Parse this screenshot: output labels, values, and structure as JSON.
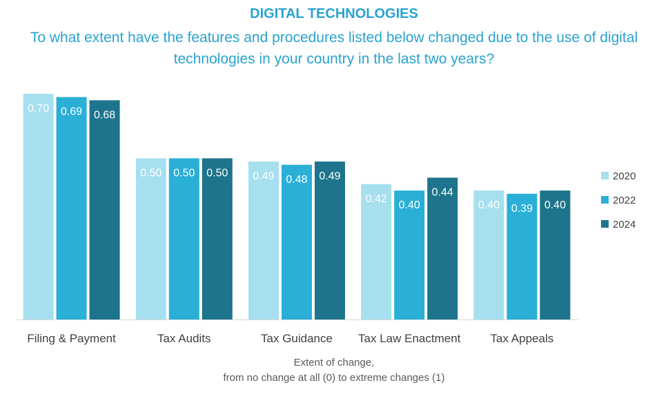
{
  "title": "DIGITAL TECHNOLOGIES",
  "subtitle": "To what extent have the features and procedures listed below changed due to the use of digital technologies in your country in the last two years?",
  "colors": {
    "title": "#29a3cf",
    "2020": "#a6dfee",
    "2022": "#2aafd7",
    "2024": "#1d748c"
  },
  "chart_data": {
    "type": "bar",
    "categories": [
      "Filing & Payment",
      "Tax Audits",
      "Tax Guidance",
      "Tax Law Enactment",
      "Tax Appeals"
    ],
    "series": [
      {
        "name": "2020",
        "values": [
          0.7,
          0.5,
          0.49,
          0.42,
          0.4
        ],
        "labels": [
          "0.70",
          "0.50",
          "0.49",
          "0.42",
          "0.40"
        ]
      },
      {
        "name": "2022",
        "values": [
          0.69,
          0.5,
          0.48,
          0.4,
          0.39
        ],
        "labels": [
          "0.69",
          "0.50",
          "0.48",
          "0.40",
          "0.39"
        ]
      },
      {
        "name": "2024",
        "values": [
          0.68,
          0.5,
          0.49,
          0.44,
          0.4
        ],
        "labels": [
          "0.68",
          "0.50",
          "0.49",
          "0.44",
          "0.40"
        ]
      }
    ],
    "xlabel_line1": "Extent of change,",
    "xlabel_line2": "from no change at all (0) to extreme changes (1)",
    "ylim": [
      0,
      0.7
    ],
    "grid": false,
    "legend_position": "right"
  }
}
